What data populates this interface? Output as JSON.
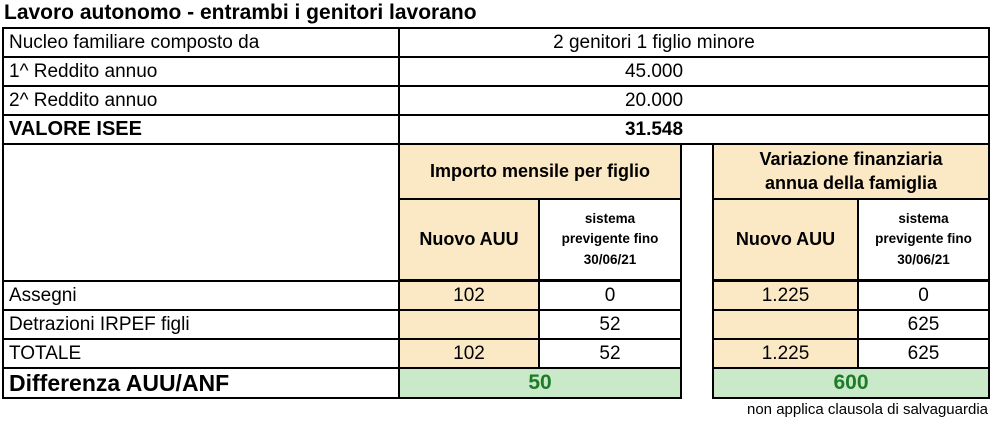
{
  "title": "Lavoro autonomo - entrambi i genitori lavorano",
  "info_rows": [
    {
      "label": "Nucleo familiare composto da",
      "value": "2 genitori 1 figlio minore"
    },
    {
      "label": "1^ Reddito annuo",
      "value": "45.000"
    },
    {
      "label": "2^ Reddito annuo",
      "value": "20.000"
    },
    {
      "label": "VALORE ISEE",
      "value": "31.548"
    }
  ],
  "groups": [
    {
      "header": "Importo mensile per figlio",
      "subcol_new": "Nuovo AUU",
      "subcol_old": "sistema\nprevigente fino\n30/06/21"
    },
    {
      "header": "Variazione finanziaria\nannua della famiglia",
      "subcol_new": "Nuovo AUU",
      "subcol_old": "sistema\nprevigente fino\n30/06/21"
    }
  ],
  "data_rows": [
    {
      "label": "Assegni",
      "monthly_new": "102",
      "monthly_old": "0",
      "annual_new": "1.225",
      "annual_old": "0"
    },
    {
      "label": "Detrazioni IRPEF figli",
      "monthly_new": "",
      "monthly_old": "52",
      "annual_new": "",
      "annual_old": "625"
    },
    {
      "label": "TOTALE",
      "monthly_new": "102",
      "monthly_old": "52",
      "annual_new": "1.225",
      "annual_old": "625"
    }
  ],
  "difference_row": {
    "label": "Differenza AUU/ANF",
    "monthly": "50",
    "annual": "600"
  },
  "footnote": "non applica clausola di salvaguardia",
  "colors": {
    "beige": "#FBE8C4",
    "green-bg": "#C9E9C9",
    "green-text": "#1E7B28",
    "border": "#000000"
  },
  "chart_data": {
    "type": "table",
    "title": "Lavoro autonomo - entrambi i genitori lavorano",
    "household": {
      "Nucleo familiare composto da": "2 genitori 1 figlio minore",
      "1^ Reddito annuo": 45000,
      "2^ Reddito annuo": 20000,
      "VALORE ISEE": 31548
    },
    "column_groups": [
      "Importo mensile per figlio",
      "Variazione finanziaria annua della famiglia"
    ],
    "columns": [
      "Importo mensile per figlio - Nuovo AUU",
      "Importo mensile per figlio - sistema previgente fino 30/06/21",
      "Variazione finanziaria annua della famiglia - Nuovo AUU",
      "Variazione finanziaria annua della famiglia - sistema previgente fino 30/06/21"
    ],
    "rows": [
      {
        "label": "Assegni",
        "values": [
          102,
          0,
          1225,
          0
        ]
      },
      {
        "label": "Detrazioni IRPEF figli",
        "values": [
          null,
          52,
          null,
          625
        ]
      },
      {
        "label": "TOTALE",
        "values": [
          102,
          52,
          1225,
          625
        ]
      },
      {
        "label": "Differenza AUU/ANF",
        "values": [
          50,
          null,
          600,
          null
        ]
      }
    ],
    "note": "non applica clausola di salvaguardia"
  }
}
